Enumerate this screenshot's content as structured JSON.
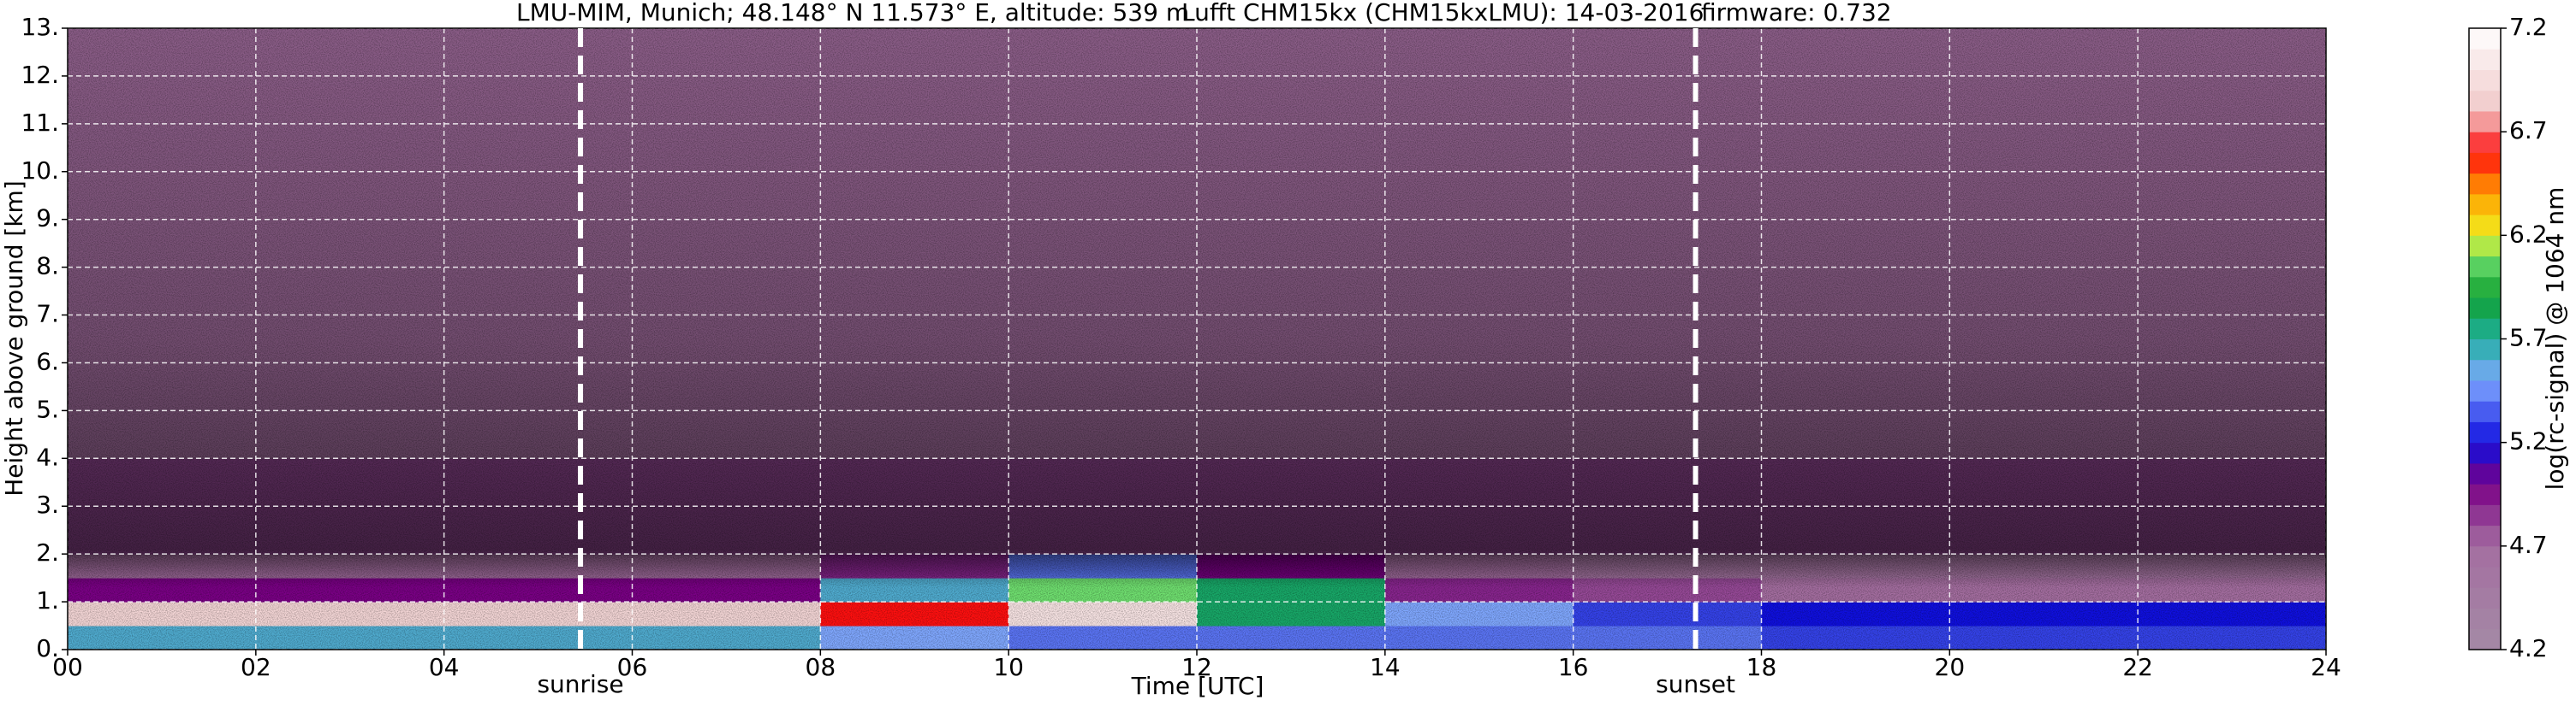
{
  "chart_data": {
    "type": "heatmap",
    "title": [
      "LMU-MIM, Munich; 48.148° N 11.573° E, altitude: 539 m",
      "Lufft CHM15kx (CHM15kxLMU): 14-03-2016",
      "firmware: 0.732"
    ],
    "x_label": "Time [UTC]",
    "y_label": "Height above ground [km]",
    "colorbar_label": "log(rc-signal) @ 1064 nm",
    "x_bins": [
      0,
      2,
      4,
      6,
      8,
      10,
      12,
      14,
      16,
      18,
      20,
      22,
      24
    ],
    "y_bins": [
      0,
      0.5,
      1,
      1.5,
      2,
      4,
      7,
      10,
      13
    ],
    "z": [
      [
        5.6,
        5.6,
        5.6,
        5.6,
        5.5,
        5.4,
        5.4,
        5.4,
        5.4,
        5.3,
        5.3,
        5.3
      ],
      [
        6.9,
        6.9,
        6.9,
        6.9,
        6.6,
        7.0,
        5.8,
        5.5,
        5.3,
        5.2,
        5.2,
        5.2
      ],
      [
        5.0,
        5.0,
        5.0,
        5.0,
        5.6,
        6.1,
        5.8,
        4.9,
        4.8,
        4.7,
        4.7,
        4.7
      ],
      [
        4.7,
        4.7,
        4.7,
        4.7,
        4.9,
        5.4,
        5.0,
        4.7,
        4.6,
        4.6,
        4.6,
        4.6
      ],
      [
        4.8,
        4.8,
        4.8,
        4.8,
        4.8,
        4.8,
        4.8,
        4.8,
        4.8,
        4.8,
        4.8,
        4.8
      ],
      [
        4.7,
        4.7,
        4.7,
        4.7,
        4.7,
        4.7,
        4.7,
        4.7,
        4.7,
        4.7,
        4.7,
        4.7
      ],
      [
        4.7,
        4.7,
        4.7,
        4.7,
        4.7,
        4.7,
        4.7,
        4.7,
        4.7,
        4.7,
        4.7,
        4.7
      ],
      [
        4.7,
        4.7,
        4.7,
        4.7,
        4.7,
        4.7,
        4.7,
        4.7,
        4.7,
        4.7,
        4.7,
        4.7
      ]
    ],
    "xlim": [
      0,
      24
    ],
    "ylim": [
      0,
      13
    ],
    "xticks": [
      {
        "value": 0,
        "label": "00"
      },
      {
        "value": 2,
        "label": "02"
      },
      {
        "value": 4,
        "label": "04"
      },
      {
        "value": 6,
        "label": "06"
      },
      {
        "value": 8,
        "label": "08"
      },
      {
        "value": 10,
        "label": "10"
      },
      {
        "value": 12,
        "label": "12"
      },
      {
        "value": 14,
        "label": "14"
      },
      {
        "value": 16,
        "label": "16"
      },
      {
        "value": 18,
        "label": "18"
      },
      {
        "value": 20,
        "label": "20"
      },
      {
        "value": 22,
        "label": "22"
      },
      {
        "value": 24,
        "label": "24"
      }
    ],
    "yticks": [
      {
        "value": 0,
        "label": "0."
      },
      {
        "value": 1,
        "label": "1."
      },
      {
        "value": 2,
        "label": "2."
      },
      {
        "value": 3,
        "label": "3."
      },
      {
        "value": 4,
        "label": "4."
      },
      {
        "value": 5,
        "label": "5."
      },
      {
        "value": 6,
        "label": "6."
      },
      {
        "value": 7,
        "label": "7."
      },
      {
        "value": 8,
        "label": "8."
      },
      {
        "value": 9,
        "label": "9."
      },
      {
        "value": 10,
        "label": "10."
      },
      {
        "value": 11,
        "label": "11."
      },
      {
        "value": 12,
        "label": "12."
      },
      {
        "value": 13,
        "label": "13."
      }
    ],
    "clim": [
      4.2,
      7.2
    ],
    "cticks": [
      4.2,
      4.7,
      5.2,
      5.7,
      6.2,
      6.7,
      7.2
    ],
    "colorscale": [
      [
        4.2,
        "#a48aa6"
      ],
      [
        4.7,
        "#a46ea0"
      ],
      [
        5.0,
        "#7a0085"
      ],
      [
        5.2,
        "#1010e0"
      ],
      [
        5.5,
        "#80a8ff"
      ],
      [
        5.7,
        "#20b0a0"
      ],
      [
        5.9,
        "#10a030"
      ],
      [
        6.1,
        "#70e070"
      ],
      [
        6.2,
        "#f0f020"
      ],
      [
        6.4,
        "#ffa000"
      ],
      [
        6.6,
        "#ff1010"
      ],
      [
        6.8,
        "#f0c8c8"
      ],
      [
        7.2,
        "#ffffff"
      ]
    ],
    "grid": true,
    "vlines": [
      {
        "x": 5.45,
        "label": "sunrise"
      },
      {
        "x": 17.3,
        "label": "sunset"
      }
    ]
  }
}
